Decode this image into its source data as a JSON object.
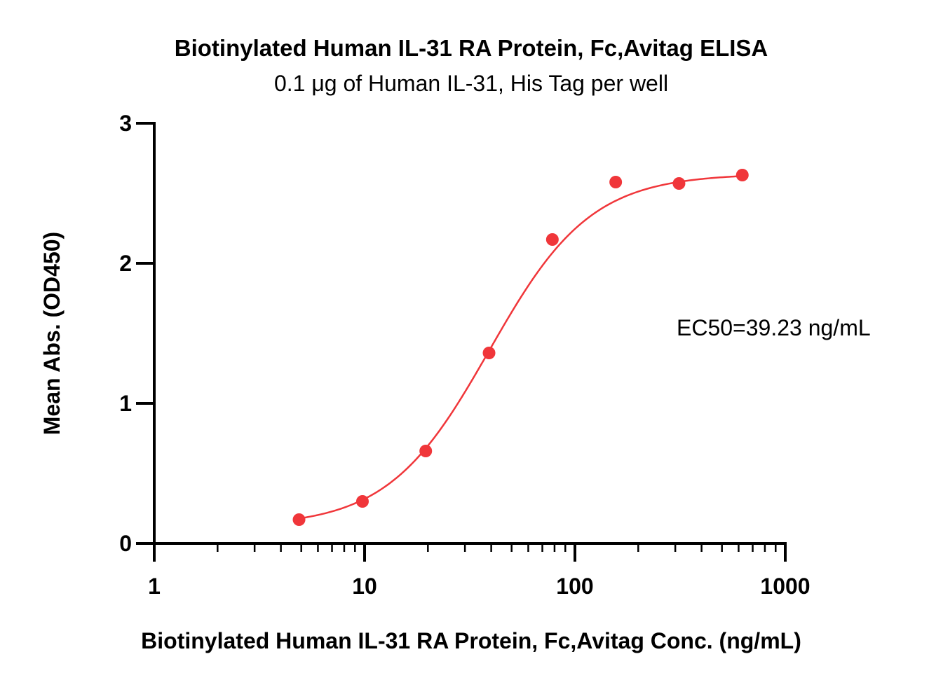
{
  "chart_data": {
    "type": "scatter",
    "title": "Biotinylated Human IL-31 RA Protein, Fc,Avitag ELISA",
    "subtitle": "0.1 μg of Human IL-31, His Tag per well",
    "xlabel": "Biotinylated Human IL-31 RA Protein, Fc,Avitag Conc. (ng/mL)",
    "ylabel": "Mean Abs. (OD450)",
    "x_scale": "log",
    "xlim": [
      1,
      1000
    ],
    "ylim": [
      0,
      3
    ],
    "x_ticks": [
      "1",
      "10",
      "100",
      "1000"
    ],
    "y_ticks": [
      "0",
      "1",
      "2",
      "3"
    ],
    "grid": false,
    "color": "#f0363a",
    "points": [
      {
        "x": 4.88,
        "y": 0.17
      },
      {
        "x": 9.77,
        "y": 0.3
      },
      {
        "x": 19.53,
        "y": 0.66
      },
      {
        "x": 39.06,
        "y": 1.36
      },
      {
        "x": 78.13,
        "y": 2.17
      },
      {
        "x": 156.25,
        "y": 2.58
      },
      {
        "x": 312.5,
        "y": 2.57
      },
      {
        "x": 625,
        "y": 2.63
      }
    ],
    "fit": {
      "type": "4PL",
      "bottom": 0.12,
      "top": 2.64,
      "ec50": 39.23,
      "hill": 1.8
    },
    "annotation": "EC50=39.23 ng/mL"
  }
}
